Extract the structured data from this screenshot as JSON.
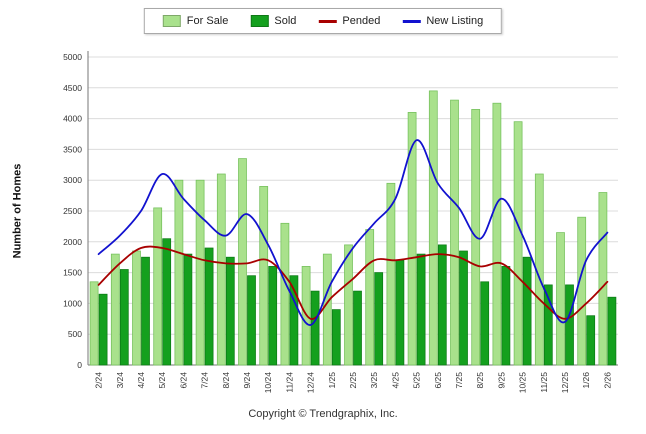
{
  "ylabel": "Number of Homes",
  "footer": "Copyright © Trendgraphix, Inc.",
  "chart_data": {
    "type": "combo",
    "legend_position": "top",
    "grid": true,
    "ylim": [
      0,
      5000
    ],
    "ytick_step": 500,
    "categories": [
      "2/24",
      "3/24",
      "4/24",
      "5/24",
      "6/24",
      "7/24",
      "8/24",
      "9/24",
      "10/24",
      "11/24",
      "12/24",
      "1/25",
      "2/25",
      "3/25",
      "4/25",
      "5/25",
      "6/25",
      "7/25",
      "8/25",
      "9/25",
      "10/25",
      "11/25",
      "12/25",
      "1/26",
      "2/26"
    ],
    "series": [
      {
        "name": "For Sale",
        "type": "bar",
        "color": "#a9e18c",
        "border": "#74c05b",
        "values": [
          1350,
          1800,
          1850,
          2550,
          3000,
          3000,
          3100,
          3350,
          2900,
          2300,
          1600,
          1800,
          1950,
          2200,
          2950,
          4100,
          4450,
          4300,
          4150,
          4250,
          3950,
          3100,
          2150,
          2400,
          2800
        ]
      },
      {
        "name": "Sold",
        "type": "bar",
        "color": "#14a01e",
        "border": "#0c7a15",
        "values": [
          1150,
          1550,
          1750,
          2050,
          1800,
          1900,
          1750,
          1450,
          1600,
          1450,
          1200,
          900,
          1200,
          1500,
          1700,
          1800,
          1950,
          1850,
          1350,
          1600,
          1750,
          1300,
          1300,
          800,
          1100
        ]
      },
      {
        "name": "Pended",
        "type": "line",
        "color": "#a80000",
        "values": [
          1300,
          1650,
          1900,
          1900,
          1800,
          1700,
          1650,
          1650,
          1700,
          1350,
          750,
          1100,
          1400,
          1700,
          1700,
          1750,
          1800,
          1750,
          1600,
          1650,
          1350,
          1000,
          750,
          1000,
          1350
        ]
      },
      {
        "name": "New Listing",
        "type": "line",
        "color": "#1212cf",
        "values": [
          1800,
          2100,
          2500,
          3100,
          2700,
          2350,
          2100,
          2450,
          1950,
          1200,
          650,
          1350,
          1900,
          2300,
          2700,
          3650,
          2950,
          2550,
          2050,
          2700,
          2100,
          1250,
          700,
          1700,
          2150
        ]
      }
    ]
  }
}
